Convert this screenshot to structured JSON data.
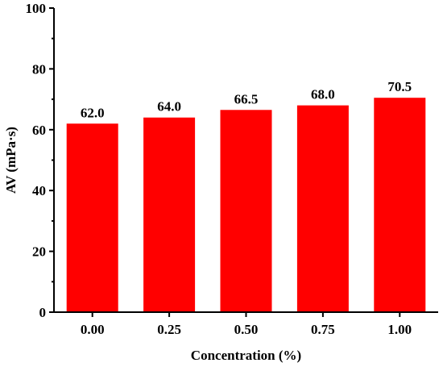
{
  "chart_data": {
    "type": "bar",
    "categories": [
      "0.00",
      "0.25",
      "0.50",
      "0.75",
      "1.00"
    ],
    "values": [
      62.0,
      64.0,
      66.5,
      68.0,
      70.5
    ],
    "data_labels": [
      "62.0",
      "64.0",
      "66.5",
      "68.0",
      "70.5"
    ],
    "title": "",
    "xlabel": "Concentration (%)",
    "ylabel": "AV (mPa·s)",
    "ylim": [
      0,
      100
    ],
    "yticks": [
      0,
      20,
      40,
      60,
      80,
      100
    ],
    "ytick_labels": [
      "0",
      "20",
      "40",
      "60",
      "80",
      "100"
    ],
    "grid": false,
    "bar_color": "#ff0000",
    "axis_color": "#000000"
  }
}
